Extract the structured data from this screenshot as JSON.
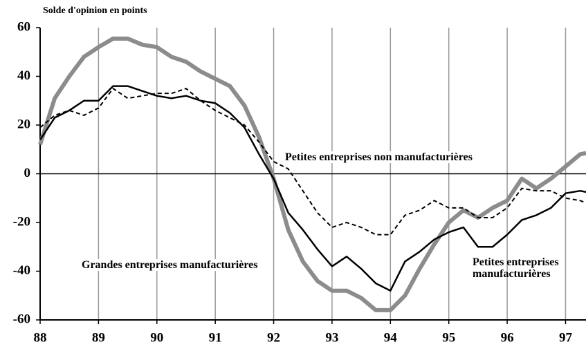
{
  "chart_data": {
    "type": "line",
    "y_label": "Solde d'opinion en points",
    "x": [
      88,
      88.25,
      88.5,
      88.75,
      89,
      89.25,
      89.5,
      89.75,
      90,
      90.25,
      90.5,
      90.75,
      91,
      91.25,
      91.5,
      91.75,
      92,
      92.25,
      92.5,
      92.75,
      93,
      93.25,
      93.5,
      93.75,
      94,
      94.25,
      94.5,
      94.75,
      95,
      95.25,
      95.5,
      95.75,
      96,
      96.25,
      96.5,
      96.75,
      97,
      97.25,
      97.35
    ],
    "series": [
      {
        "name": "Grandes entreprises manufacturières",
        "color": "#8c8c8c",
        "style": "solid",
        "values": [
          12,
          31,
          40,
          48,
          52,
          55.5,
          55.5,
          53,
          52,
          48,
          46,
          42,
          39,
          36,
          28,
          15,
          -2,
          -23,
          -36,
          -44,
          -48,
          -48,
          -51,
          -56,
          -56,
          -50,
          -39,
          -29,
          -20,
          -15,
          -18,
          -14,
          -11,
          -2,
          -6,
          -2,
          3,
          8,
          8.5
        ]
      },
      {
        "name": "Petites entreprises manufacturières",
        "color": "#000000",
        "style": "solid",
        "values": [
          14,
          23,
          26,
          30,
          30,
          36,
          36,
          34,
          32,
          31,
          32,
          30,
          29,
          25,
          19,
          8,
          -2,
          -16,
          -23,
          -31,
          -38,
          -34,
          -39,
          -45,
          -48,
          -36,
          -32,
          -27,
          -24,
          -22,
          -30,
          -30,
          -25,
          -19,
          -17,
          -14,
          -8,
          -7,
          -7.5
        ]
      },
      {
        "name": "Petites entreprises non manufacturières",
        "color": "#000000",
        "style": "dashed",
        "values": [
          19,
          24,
          26,
          24,
          27,
          35,
          31,
          32,
          33,
          33,
          35,
          30,
          26,
          23,
          20,
          13,
          5,
          2,
          -7,
          -16,
          -22,
          -20,
          -22,
          -25,
          -25,
          -17,
          -15,
          -11,
          -14,
          -14,
          -18,
          -18,
          -14,
          -6,
          -7,
          -7,
          -10,
          -11,
          -12
        ]
      }
    ],
    "xlim": [
      88,
      97.35
    ],
    "xticks": [
      88,
      89,
      90,
      91,
      92,
      93,
      94,
      95,
      96,
      97
    ],
    "ylim": [
      -60,
      60
    ],
    "yticks": [
      -60,
      -40,
      -20,
      0,
      20,
      40,
      60
    ],
    "grid": "x"
  }
}
